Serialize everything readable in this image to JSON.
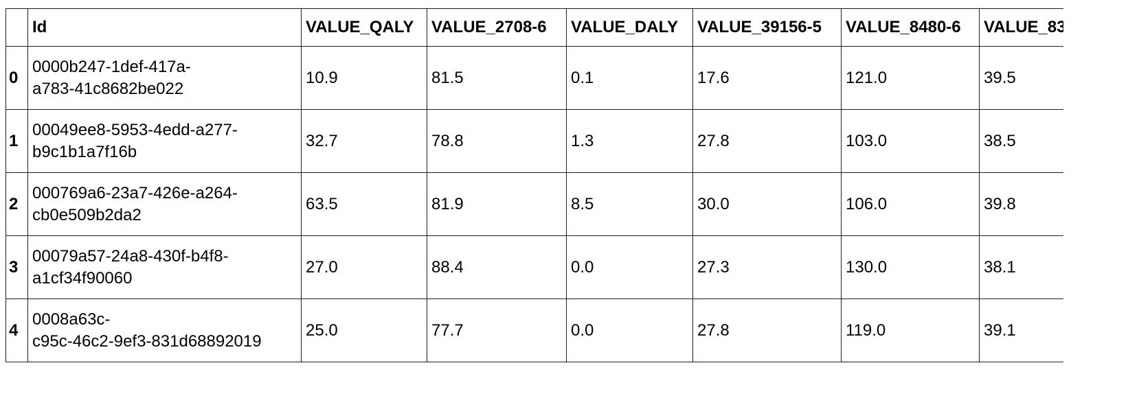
{
  "table": {
    "columns": [
      "",
      "Id",
      "VALUE_QALY",
      "VALUE_2708-6",
      "VALUE_DALY",
      "VALUE_39156-5",
      "VALUE_8480-6",
      "VALUE_83"
    ],
    "rows": [
      {
        "index": "0",
        "id_line1": "0000b247-1def-417a-",
        "id_line2": "a783-41c8682be022",
        "values": [
          "10.9",
          "81.5",
          "0.1",
          "17.6",
          "121.0",
          "39.5"
        ]
      },
      {
        "index": "1",
        "id_line1": "00049ee8-5953-4edd-a277-",
        "id_line2": "b9c1b1a7f16b",
        "values": [
          "32.7",
          "78.8",
          "1.3",
          "27.8",
          "103.0",
          "38.5"
        ]
      },
      {
        "index": "2",
        "id_line1": "000769a6-23a7-426e-a264-",
        "id_line2": "cb0e509b2da2",
        "values": [
          "63.5",
          "81.9",
          "8.5",
          "30.0",
          "106.0",
          "39.8"
        ]
      },
      {
        "index": "3",
        "id_line1": "00079a57-24a8-430f-b4f8-",
        "id_line2": "a1cf34f90060",
        "values": [
          "27.0",
          "88.4",
          "0.0",
          "27.3",
          "130.0",
          "38.1"
        ]
      },
      {
        "index": "4",
        "id_line1": "0008a63c-",
        "id_line2": "c95c-46c2-9ef3-831d68892019",
        "values": [
          "25.0",
          "77.7",
          "0.0",
          "27.8",
          "119.0",
          "39.1"
        ]
      }
    ]
  }
}
